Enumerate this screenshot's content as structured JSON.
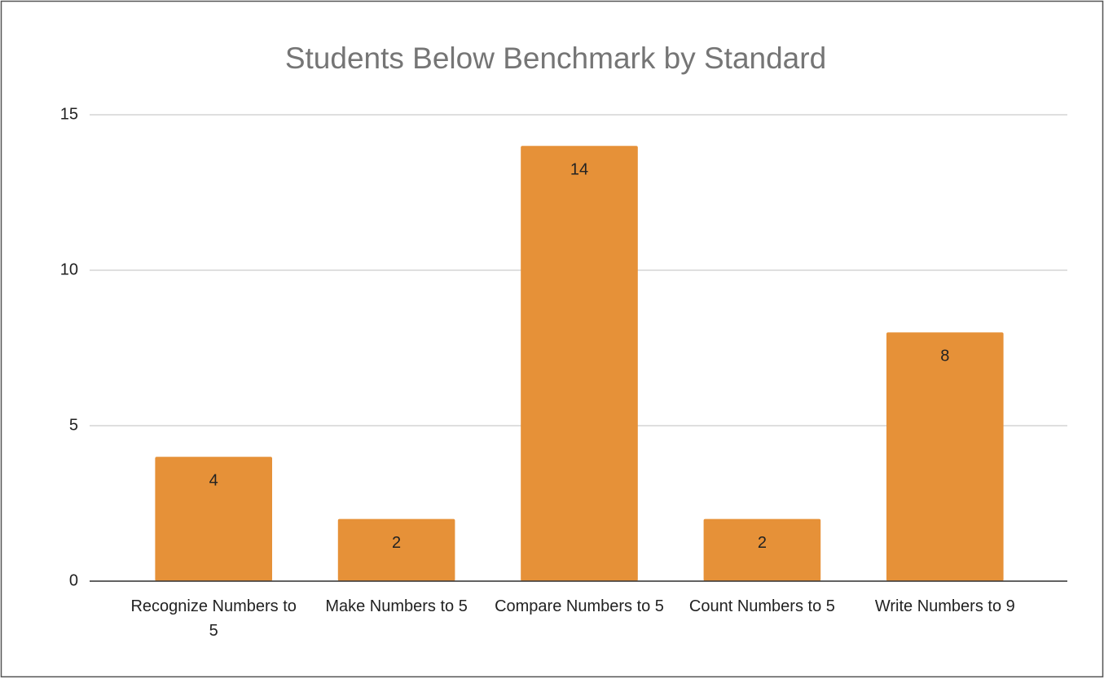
{
  "chart_data": {
    "type": "bar",
    "title": "Students Below Benchmark by Standard",
    "categories": [
      "Recognize Numbers to 5",
      "Make Numbers to 5",
      "Compare Numbers to 5",
      "Count Numbers to 5",
      "Write Numbers to 9"
    ],
    "values": [
      4,
      2,
      14,
      2,
      8
    ],
    "color": "#e69138",
    "ylim": [
      0,
      15
    ],
    "yticks": [
      0,
      5,
      10,
      15
    ],
    "grid": true
  }
}
